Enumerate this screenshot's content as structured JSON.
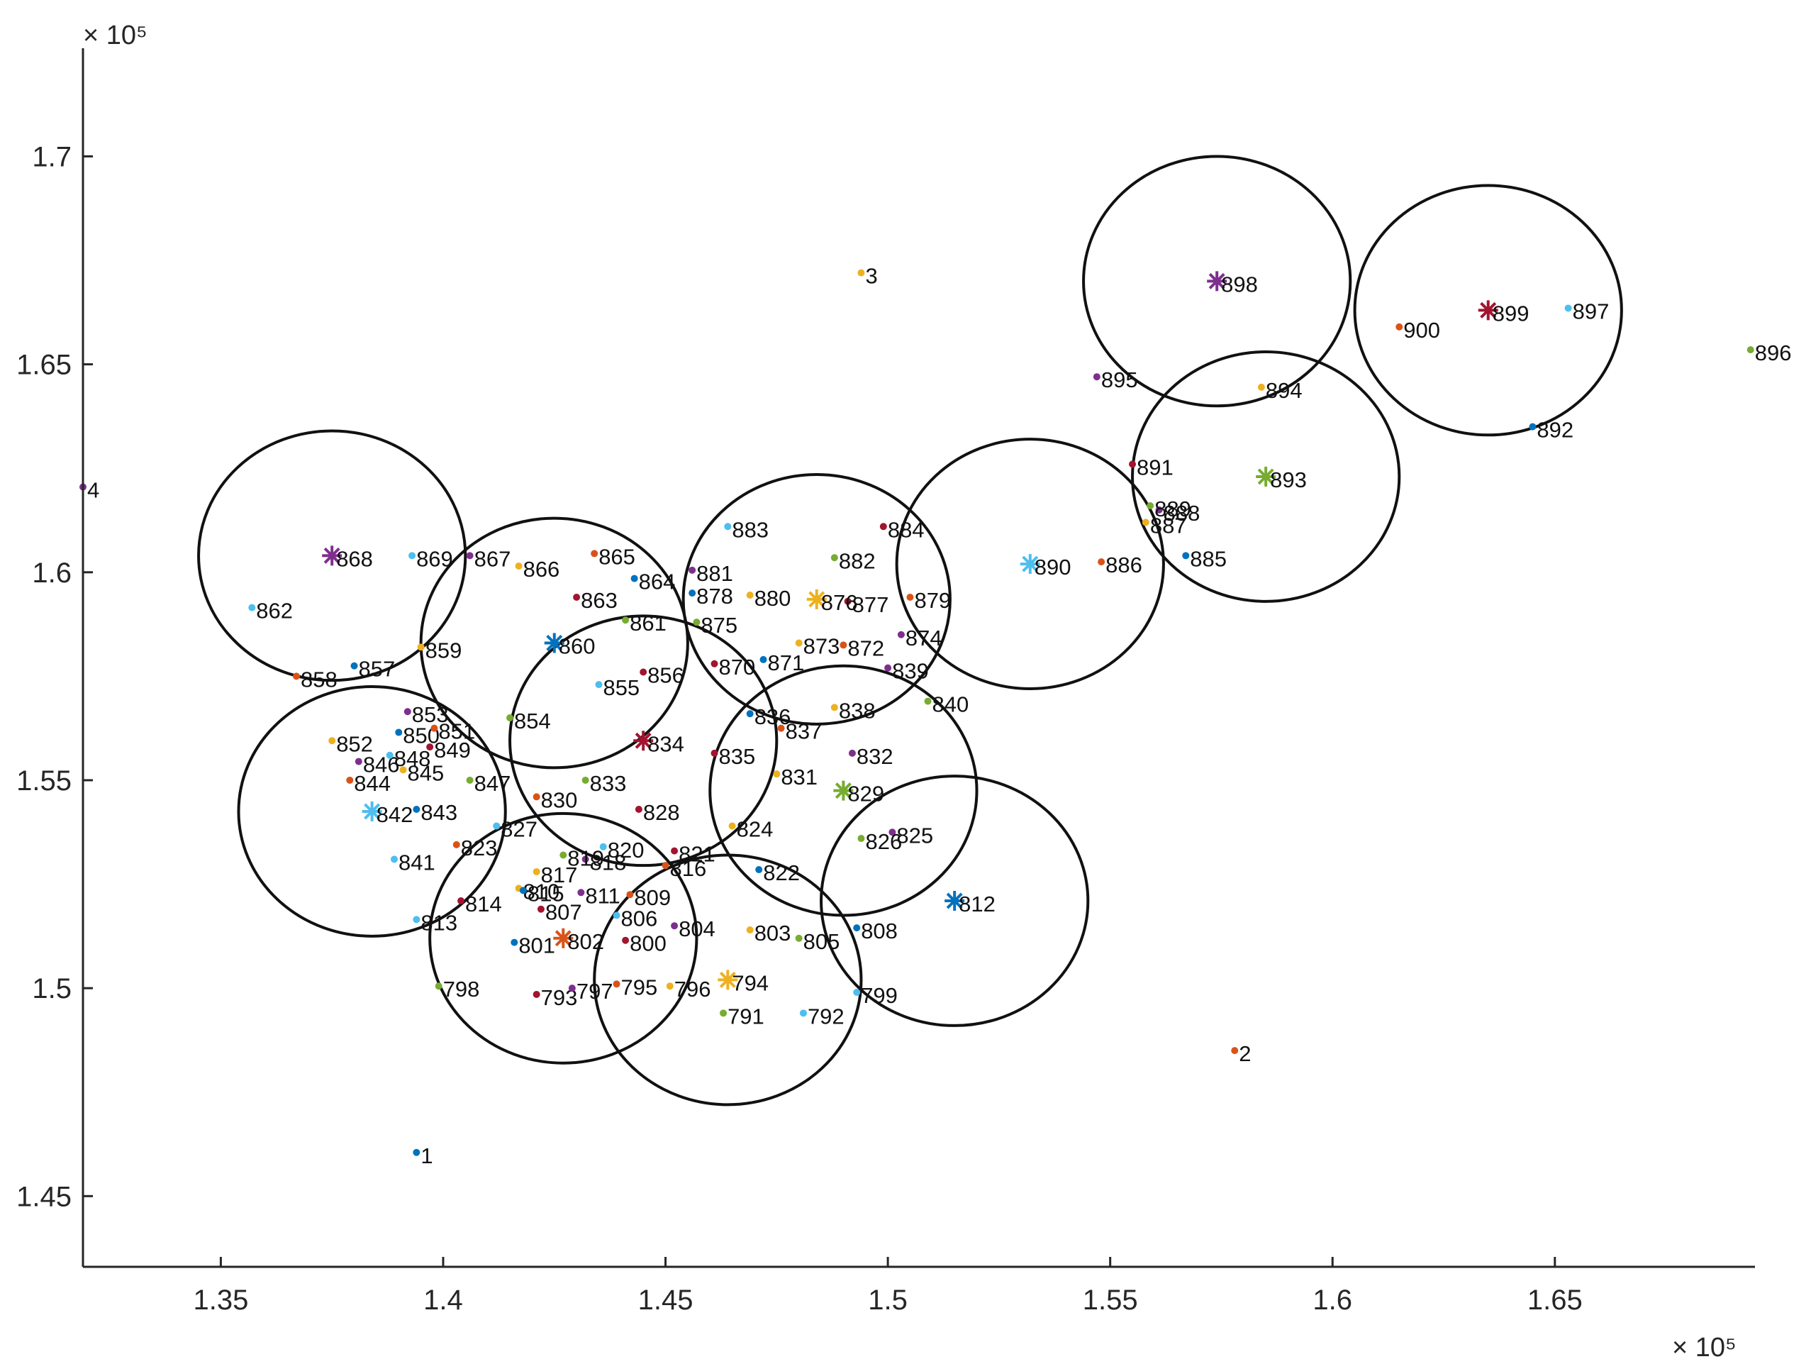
{
  "chart_data": {
    "type": "scatter",
    "title": "",
    "xlabel": "",
    "ylabel": "",
    "xlim": [
      131900,
      169500
    ],
    "ylim": [
      143300,
      172600
    ],
    "x_exponent_label": "× 10⁵",
    "y_exponent_label": "× 10⁵",
    "xticks": [
      {
        "value": 135000,
        "label": "1.35"
      },
      {
        "value": 140000,
        "label": "1.4"
      },
      {
        "value": 145000,
        "label": "1.45"
      },
      {
        "value": 150000,
        "label": "1.5"
      },
      {
        "value": 155000,
        "label": "1.55"
      },
      {
        "value": 160000,
        "label": "1.6"
      },
      {
        "value": 165000,
        "label": "1.65"
      }
    ],
    "yticks": [
      {
        "value": 145000,
        "label": "1.45"
      },
      {
        "value": 150000,
        "label": "1.5"
      },
      {
        "value": 155000,
        "label": "1.55"
      },
      {
        "value": 160000,
        "label": "1.6"
      },
      {
        "value": 165000,
        "label": "1.65"
      },
      {
        "value": 170000,
        "label": "1.7"
      }
    ],
    "grid": false,
    "circle_radius": 3000,
    "colors": [
      "#0072BD",
      "#D95319",
      "#EDB120",
      "#7E2F8E",
      "#77AC30",
      "#4DBEEE",
      "#A2142F"
    ],
    "points": [
      {
        "label": "1",
        "x": 139400,
        "y": 146050,
        "c": 0
      },
      {
        "label": "2",
        "x": 157800,
        "y": 148500,
        "c": 1
      },
      {
        "label": "3",
        "x": 149400,
        "y": 167200,
        "c": 2
      },
      {
        "label": "4",
        "x": 131900,
        "y": 162050,
        "c": 3
      },
      {
        "label": "791",
        "x": 146300,
        "y": 149400,
        "c": 4
      },
      {
        "label": "792",
        "x": 148100,
        "y": 149400,
        "c": 5
      },
      {
        "label": "793",
        "x": 142100,
        "y": 149850,
        "c": 6
      },
      {
        "label": "795",
        "x": 143900,
        "y": 150100,
        "c": 1
      },
      {
        "label": "796",
        "x": 145100,
        "y": 150050,
        "c": 2
      },
      {
        "label": "797",
        "x": 142900,
        "y": 150000,
        "c": 3
      },
      {
        "label": "798",
        "x": 139900,
        "y": 150050,
        "c": 4
      },
      {
        "label": "799",
        "x": 149300,
        "y": 149900,
        "c": 5
      },
      {
        "label": "800",
        "x": 144100,
        "y": 151150,
        "c": 6
      },
      {
        "label": "801",
        "x": 141600,
        "y": 151100,
        "c": 0
      },
      {
        "label": "803",
        "x": 146900,
        "y": 151400,
        "c": 2
      },
      {
        "label": "804",
        "x": 145200,
        "y": 151500,
        "c": 3
      },
      {
        "label": "805",
        "x": 148000,
        "y": 151200,
        "c": 4
      },
      {
        "label": "806",
        "x": 143900,
        "y": 151750,
        "c": 5
      },
      {
        "label": "807",
        "x": 142200,
        "y": 151900,
        "c": 6
      },
      {
        "label": "808",
        "x": 149300,
        "y": 151450,
        "c": 0
      },
      {
        "label": "809",
        "x": 144200,
        "y": 152250,
        "c": 1
      },
      {
        "label": "810",
        "x": 141700,
        "y": 152400,
        "c": 2
      },
      {
        "label": "811",
        "x": 143100,
        "y": 152300,
        "c": 3
      },
      {
        "label": "813",
        "x": 139400,
        "y": 151650,
        "c": 5
      },
      {
        "label": "814",
        "x": 140400,
        "y": 152100,
        "c": 6
      },
      {
        "label": "815",
        "x": 141800,
        "y": 152350,
        "c": 0
      },
      {
        "label": "816",
        "x": 145000,
        "y": 152950,
        "c": 1
      },
      {
        "label": "817",
        "x": 142100,
        "y": 152800,
        "c": 2
      },
      {
        "label": "818",
        "x": 143200,
        "y": 153100,
        "c": 3
      },
      {
        "label": "819",
        "x": 142700,
        "y": 153200,
        "c": 4
      },
      {
        "label": "820",
        "x": 143600,
        "y": 153400,
        "c": 5
      },
      {
        "label": "821",
        "x": 145200,
        "y": 153300,
        "c": 6
      },
      {
        "label": "822",
        "x": 147100,
        "y": 152850,
        "c": 0
      },
      {
        "label": "823",
        "x": 140300,
        "y": 153450,
        "c": 1
      },
      {
        "label": "824",
        "x": 146500,
        "y": 153900,
        "c": 2
      },
      {
        "label": "825",
        "x": 150100,
        "y": 153750,
        "c": 3
      },
      {
        "label": "826",
        "x": 149400,
        "y": 153600,
        "c": 4
      },
      {
        "label": "827",
        "x": 141200,
        "y": 153900,
        "c": 5
      },
      {
        "label": "828",
        "x": 144400,
        "y": 154300,
        "c": 6
      },
      {
        "label": "830",
        "x": 142100,
        "y": 154600,
        "c": 1
      },
      {
        "label": "831",
        "x": 147500,
        "y": 155150,
        "c": 2
      },
      {
        "label": "832",
        "x": 149200,
        "y": 155650,
        "c": 3
      },
      {
        "label": "833",
        "x": 143200,
        "y": 155000,
        "c": 4
      },
      {
        "label": "835",
        "x": 146100,
        "y": 155650,
        "c": 6
      },
      {
        "label": "836",
        "x": 146900,
        "y": 156600,
        "c": 0
      },
      {
        "label": "837",
        "x": 147600,
        "y": 156250,
        "c": 1
      },
      {
        "label": "838",
        "x": 148800,
        "y": 156750,
        "c": 2
      },
      {
        "label": "839",
        "x": 150000,
        "y": 157700,
        "c": 3
      },
      {
        "label": "840",
        "x": 150900,
        "y": 156900,
        "c": 4
      },
      {
        "label": "841",
        "x": 138900,
        "y": 153100,
        "c": 5
      },
      {
        "label": "843",
        "x": 139400,
        "y": 154300,
        "c": 0
      },
      {
        "label": "844",
        "x": 137900,
        "y": 155000,
        "c": 1
      },
      {
        "label": "845",
        "x": 139100,
        "y": 155250,
        "c": 2
      },
      {
        "label": "846",
        "x": 138100,
        "y": 155450,
        "c": 3
      },
      {
        "label": "847",
        "x": 140600,
        "y": 155000,
        "c": 4
      },
      {
        "label": "848",
        "x": 138800,
        "y": 155600,
        "c": 5
      },
      {
        "label": "849",
        "x": 139700,
        "y": 155800,
        "c": 6
      },
      {
        "label": "850",
        "x": 139000,
        "y": 156150,
        "c": 0
      },
      {
        "label": "851",
        "x": 139800,
        "y": 156250,
        "c": 1
      },
      {
        "label": "852",
        "x": 137500,
        "y": 155950,
        "c": 2
      },
      {
        "label": "853",
        "x": 139200,
        "y": 156650,
        "c": 3
      },
      {
        "label": "854",
        "x": 141500,
        "y": 156500,
        "c": 4
      },
      {
        "label": "855",
        "x": 143500,
        "y": 157300,
        "c": 5
      },
      {
        "label": "856",
        "x": 144500,
        "y": 157600,
        "c": 6
      },
      {
        "label": "857",
        "x": 138000,
        "y": 157750,
        "c": 0
      },
      {
        "label": "858",
        "x": 136700,
        "y": 157500,
        "c": 1
      },
      {
        "label": "859",
        "x": 139500,
        "y": 158200,
        "c": 2
      },
      {
        "label": "861",
        "x": 144100,
        "y": 158850,
        "c": 4
      },
      {
        "label": "862",
        "x": 135700,
        "y": 159150,
        "c": 5
      },
      {
        "label": "863",
        "x": 143000,
        "y": 159400,
        "c": 6
      },
      {
        "label": "864",
        "x": 144300,
        "y": 159850,
        "c": 0
      },
      {
        "label": "865",
        "x": 143400,
        "y": 160450,
        "c": 1
      },
      {
        "label": "866",
        "x": 141700,
        "y": 160150,
        "c": 2
      },
      {
        "label": "867",
        "x": 140600,
        "y": 160400,
        "c": 3
      },
      {
        "label": "869",
        "x": 139300,
        "y": 160400,
        "c": 5
      },
      {
        "label": "870",
        "x": 146100,
        "y": 157800,
        "c": 6
      },
      {
        "label": "871",
        "x": 147200,
        "y": 157900,
        "c": 0
      },
      {
        "label": "872",
        "x": 149000,
        "y": 158250,
        "c": 1
      },
      {
        "label": "873",
        "x": 148000,
        "y": 158300,
        "c": 2
      },
      {
        "label": "874",
        "x": 150300,
        "y": 158500,
        "c": 3
      },
      {
        "label": "875",
        "x": 145700,
        "y": 158800,
        "c": 4
      },
      {
        "label": "877",
        "x": 149100,
        "y": 159300,
        "c": 6
      },
      {
        "label": "878",
        "x": 145600,
        "y": 159500,
        "c": 0
      },
      {
        "label": "879",
        "x": 150500,
        "y": 159400,
        "c": 1
      },
      {
        "label": "880",
        "x": 146900,
        "y": 159450,
        "c": 2
      },
      {
        "label": "881",
        "x": 145600,
        "y": 160050,
        "c": 3
      },
      {
        "label": "882",
        "x": 148800,
        "y": 160350,
        "c": 4
      },
      {
        "label": "883",
        "x": 146400,
        "y": 161100,
        "c": 5
      },
      {
        "label": "884",
        "x": 149900,
        "y": 161100,
        "c": 6
      },
      {
        "label": "885",
        "x": 156700,
        "y": 160400,
        "c": 0
      },
      {
        "label": "886",
        "x": 154800,
        "y": 160250,
        "c": 1
      },
      {
        "label": "887",
        "x": 155800,
        "y": 161200,
        "c": 2
      },
      {
        "label": "888",
        "x": 156100,
        "y": 161500,
        "c": 3
      },
      {
        "label": "889",
        "x": 155900,
        "y": 161600,
        "c": 4
      },
      {
        "label": "891",
        "x": 155500,
        "y": 162600,
        "c": 6
      },
      {
        "label": "892",
        "x": 164500,
        "y": 163500,
        "c": 0
      },
      {
        "label": "894",
        "x": 158400,
        "y": 164450,
        "c": 2
      },
      {
        "label": "895",
        "x": 154700,
        "y": 164700,
        "c": 3
      },
      {
        "label": "896",
        "x": 169400,
        "y": 165350,
        "c": 4
      },
      {
        "label": "897",
        "x": 165300,
        "y": 166350,
        "c": 5
      },
      {
        "label": "900",
        "x": 161500,
        "y": 165900,
        "c": 1
      }
    ],
    "centers": [
      {
        "label": "794",
        "x": 146400,
        "y": 150200,
        "c": 2
      },
      {
        "label": "802",
        "x": 142700,
        "y": 151200,
        "c": 1
      },
      {
        "label": "812",
        "x": 151500,
        "y": 152100,
        "c": 0
      },
      {
        "label": "829",
        "x": 149000,
        "y": 154750,
        "c": 4
      },
      {
        "label": "834",
        "x": 144500,
        "y": 155950,
        "c": 6
      },
      {
        "label": "842",
        "x": 138400,
        "y": 154250,
        "c": 5
      },
      {
        "label": "860",
        "x": 142500,
        "y": 158300,
        "c": 0
      },
      {
        "label": "868",
        "x": 137500,
        "y": 160400,
        "c": 3
      },
      {
        "label": "876",
        "x": 148400,
        "y": 159350,
        "c": 2
      },
      {
        "label": "890",
        "x": 153200,
        "y": 160200,
        "c": 5
      },
      {
        "label": "893",
        "x": 158500,
        "y": 162300,
        "c": 4
      },
      {
        "label": "898",
        "x": 157400,
        "y": 167000,
        "c": 3
      },
      {
        "label": "899",
        "x": 163500,
        "y": 166300,
        "c": 6
      }
    ]
  }
}
